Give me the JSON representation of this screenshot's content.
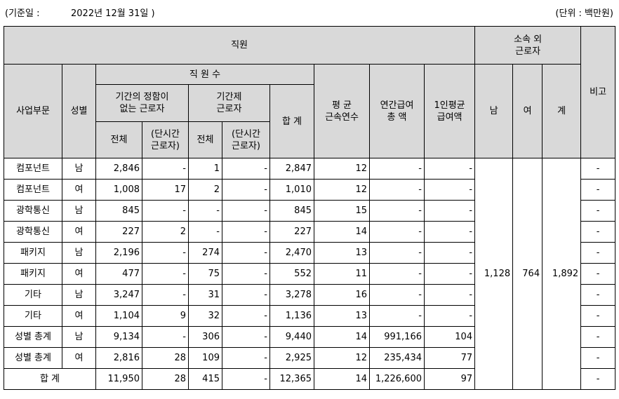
{
  "caption": {
    "left": "(기준일 :",
    "date": "2022년 12월 31일    )",
    "unit": "(단위 : 백만원)"
  },
  "headers": {
    "employees": "직원",
    "outsourced": "소속 외\n근로자",
    "remarks": "비고",
    "division": "사업부문",
    "gender": "성별",
    "headcount": "직 원 수",
    "permanent": "기간의 정함이\n없는 근로자",
    "fixed_term": "기간제\n근로자",
    "total_sum": "합 계",
    "avg_tenure": "평 균\n근속연수",
    "annual_pay": "연간급여\n총 액",
    "avg_pay": "1인평균\n급여액",
    "male": "남",
    "female": "여",
    "sum": "계",
    "perm_all": "전체",
    "perm_part": "(단시간\n근로자)",
    "fixed_all": "전체",
    "fixed_part": "(단시간\n근로자)"
  },
  "rows": [
    {
      "division": "컴포넌트",
      "gender": "남",
      "perm_all": "2,846",
      "perm_part": "-",
      "fixed_all": "1",
      "fixed_part": "-",
      "total": "2,847",
      "tenure": "12",
      "annual": "-",
      "avg": "-",
      "remark": "-"
    },
    {
      "division": "컴포넌트",
      "gender": "여",
      "perm_all": "1,008",
      "perm_part": "17",
      "fixed_all": "2",
      "fixed_part": "-",
      "total": "1,010",
      "tenure": "12",
      "annual": "-",
      "avg": "-",
      "remark": "-"
    },
    {
      "division": "광학통신",
      "gender": "남",
      "perm_all": "845",
      "perm_part": "-",
      "fixed_all": "-",
      "fixed_part": "-",
      "total": "845",
      "tenure": "15",
      "annual": "-",
      "avg": "-",
      "remark": "-"
    },
    {
      "division": "광학통신",
      "gender": "여",
      "perm_all": "227",
      "perm_part": "2",
      "fixed_all": "-",
      "fixed_part": "-",
      "total": "227",
      "tenure": "14",
      "annual": "-",
      "avg": "-",
      "remark": "-"
    },
    {
      "division": "패키지",
      "gender": "남",
      "perm_all": "2,196",
      "perm_part": "-",
      "fixed_all": "274",
      "fixed_part": "-",
      "total": "2,470",
      "tenure": "13",
      "annual": "-",
      "avg": "-",
      "remark": "-"
    },
    {
      "division": "패키지",
      "gender": "여",
      "perm_all": "477",
      "perm_part": "-",
      "fixed_all": "75",
      "fixed_part": "-",
      "total": "552",
      "tenure": "11",
      "annual": "-",
      "avg": "-",
      "remark": "-"
    },
    {
      "division": "기타",
      "gender": "남",
      "perm_all": "3,247",
      "perm_part": "-",
      "fixed_all": "31",
      "fixed_part": "-",
      "total": "3,278",
      "tenure": "16",
      "annual": "-",
      "avg": "-",
      "remark": "-"
    },
    {
      "division": "기타",
      "gender": "여",
      "perm_all": "1,104",
      "perm_part": "9",
      "fixed_all": "32",
      "fixed_part": "-",
      "total": "1,136",
      "tenure": "13",
      "annual": "-",
      "avg": "-",
      "remark": "-"
    },
    {
      "division": "성별 총계",
      "gender": "남",
      "perm_all": "9,134",
      "perm_part": "-",
      "fixed_all": "306",
      "fixed_part": "-",
      "total": "9,440",
      "tenure": "14",
      "annual": "991,166",
      "avg": "104",
      "remark": "-"
    },
    {
      "division": "성별 총계",
      "gender": "여",
      "perm_all": "2,816",
      "perm_part": "28",
      "fixed_all": "109",
      "fixed_part": "-",
      "total": "2,925",
      "tenure": "12",
      "annual": "235,434",
      "avg": "77",
      "remark": "-"
    }
  ],
  "total_row": {
    "label": "합 계",
    "perm_all": "11,950",
    "perm_part": "28",
    "fixed_all": "415",
    "fixed_part": "-",
    "total": "12,365",
    "tenure": "14",
    "annual": "1,226,600",
    "avg": "97",
    "remark": "-"
  },
  "outsourced": {
    "male": "1,128",
    "female": "764",
    "sum": "1,892"
  }
}
